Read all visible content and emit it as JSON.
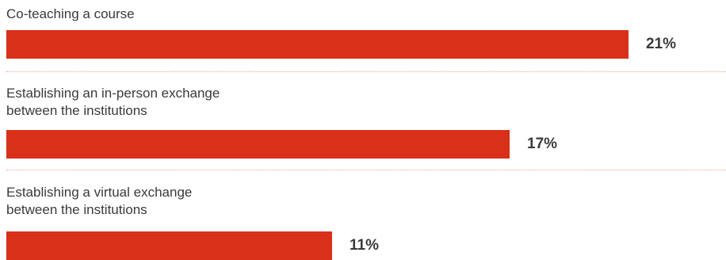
{
  "chart_data": {
    "type": "bar",
    "orientation": "horizontal",
    "categories": [
      [
        "Co-teaching a course"
      ],
      [
        "Establishing an in-person exchange",
        "between the institutions"
      ],
      [
        "Establishing a virtual exchange",
        "between the institutions"
      ]
    ],
    "values": [
      21,
      17,
      11
    ],
    "value_labels": [
      "21%",
      "17%",
      "11%"
    ],
    "unit": "%",
    "bar_color": "#d9301a",
    "text_color": "#3a3a3a",
    "divider_color": "#e8a89c",
    "title": "",
    "xlabel": "",
    "ylabel": ""
  }
}
